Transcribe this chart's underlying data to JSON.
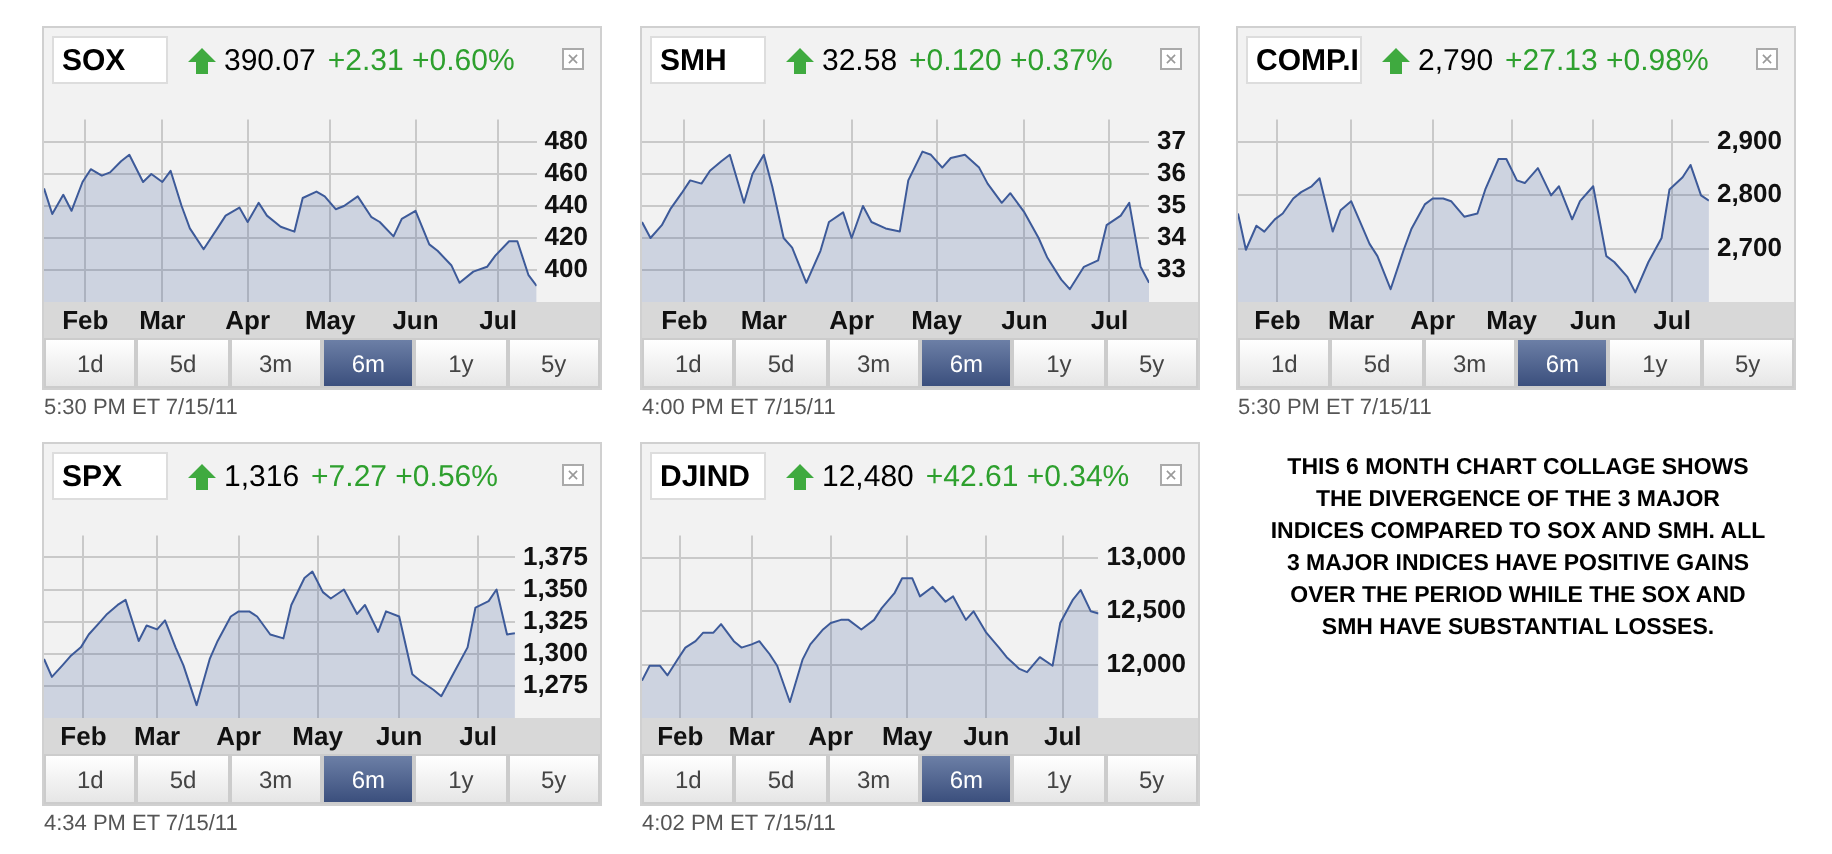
{
  "chart_data": [
    {
      "type": "area",
      "title": "SOX",
      "subtitle": "390.07",
      "annotations": [
        "+2.31 +0.60%",
        "1d",
        "5d",
        "3m",
        "6m",
        "1y",
        "5y",
        "5:30 PM ET 7/15/11"
      ],
      "grid": true,
      "color": "#3d5a99",
      "x": [
        "--01-17",
        "--01-20",
        "--01-24",
        "--01-27",
        "--01-31",
        "--02-03",
        "--02-07",
        "--02-10",
        "--02-14",
        "--02-17",
        "--02-22",
        "--02-25",
        "--03-01",
        "--03-04",
        "--03-08",
        "--03-11",
        "--03-16",
        "--03-21",
        "--03-24",
        "--03-29",
        "--04-01",
        "--04-05",
        "--04-08",
        "--04-13",
        "--04-18",
        "--04-21",
        "--04-26",
        "--04-29",
        "--05-03",
        "--05-06",
        "--05-11",
        "--05-16",
        "--05-19",
        "--05-24",
        "--05-27",
        "--06-01",
        "--06-06",
        "--06-09",
        "--06-14",
        "--06-17",
        "--06-22",
        "--06-27",
        "--06-30",
        "--07-05",
        "--07-08",
        "--07-12",
        "--07-15"
      ],
      "values": [
        451,
        435,
        447,
        437,
        455,
        463,
        459,
        461,
        468,
        472,
        455,
        460,
        455,
        462,
        440,
        426,
        413,
        426,
        434,
        439,
        430,
        442,
        434,
        427,
        424,
        445,
        449,
        446,
        438,
        440,
        446,
        433,
        430,
        421,
        432,
        437,
        416,
        412,
        403,
        392,
        399,
        402,
        409,
        418,
        418,
        397,
        390
      ],
      "xlim": [
        "--01-17",
        "--07-15"
      ],
      "xticks": [
        {
          "value": "--02-01",
          "label": "Feb"
        },
        {
          "value": "--03-01",
          "label": "Mar"
        },
        {
          "value": "--04-01",
          "label": "Apr"
        },
        {
          "value": "--05-01",
          "label": "May"
        },
        {
          "value": "--06-01",
          "label": "Jun"
        },
        {
          "value": "--07-01",
          "label": "Jul"
        }
      ],
      "ylim": [
        380,
        494
      ],
      "yticks": [
        400,
        420,
        440,
        460,
        480
      ]
    },
    {
      "type": "area",
      "title": "SMH",
      "subtitle": "32.58",
      "annotations": [
        "+0.120 +0.37%",
        "1d",
        "5d",
        "3m",
        "6m",
        "1y",
        "5y",
        "4:00 PM ET 7/15/11"
      ],
      "grid": true,
      "color": "#3d5a99",
      "x": [
        "--01-17",
        "--01-20",
        "--01-24",
        "--01-27",
        "--01-31",
        "--02-03",
        "--02-07",
        "--02-10",
        "--02-14",
        "--02-17",
        "--02-22",
        "--02-25",
        "--03-01",
        "--03-04",
        "--03-08",
        "--03-11",
        "--03-16",
        "--03-21",
        "--03-24",
        "--03-29",
        "--04-01",
        "--04-05",
        "--04-08",
        "--04-13",
        "--04-18",
        "--04-21",
        "--04-26",
        "--04-29",
        "--05-03",
        "--05-06",
        "--05-11",
        "--05-16",
        "--05-19",
        "--05-24",
        "--05-27",
        "--06-01",
        "--06-06",
        "--06-09",
        "--06-14",
        "--06-17",
        "--06-22",
        "--06-27",
        "--06-30",
        "--07-05",
        "--07-08",
        "--07-12",
        "--07-15"
      ],
      "values": [
        34.5,
        34.0,
        34.4,
        34.9,
        35.4,
        35.8,
        35.7,
        36.1,
        36.4,
        36.6,
        35.1,
        36.0,
        36.6,
        35.6,
        34.0,
        33.7,
        32.6,
        33.6,
        34.5,
        34.8,
        34.0,
        35.0,
        34.5,
        34.3,
        34.2,
        35.8,
        36.7,
        36.6,
        36.2,
        36.5,
        36.6,
        36.2,
        35.7,
        35.1,
        35.4,
        34.8,
        34.0,
        33.4,
        32.7,
        32.4,
        33.1,
        33.3,
        34.4,
        34.7,
        35.1,
        33.1,
        32.6
      ],
      "xlim": [
        "--01-17",
        "--07-15"
      ],
      "xticks": [
        {
          "value": "--02-01",
          "label": "Feb"
        },
        {
          "value": "--03-01",
          "label": "Mar"
        },
        {
          "value": "--04-01",
          "label": "Apr"
        },
        {
          "value": "--05-01",
          "label": "May"
        },
        {
          "value": "--06-01",
          "label": "Jun"
        },
        {
          "value": "--07-01",
          "label": "Jul"
        }
      ],
      "ylim": [
        32,
        37.7
      ],
      "yticks": [
        33,
        34,
        35,
        36,
        37
      ]
    },
    {
      "type": "area",
      "title": "COMP.II",
      "subtitle": "2,790",
      "annotations": [
        "+27.13 +0.98%",
        "1d",
        "5d",
        "3m",
        "6m",
        "1y",
        "5y",
        "5:30 PM ET 7/15/11"
      ],
      "grid": true,
      "color": "#3d5a99",
      "x": [
        "--01-17",
        "--01-20",
        "--01-24",
        "--01-27",
        "--01-31",
        "--02-03",
        "--02-07",
        "--02-10",
        "--02-14",
        "--02-17",
        "--02-22",
        "--02-25",
        "--03-01",
        "--03-04",
        "--03-08",
        "--03-11",
        "--03-16",
        "--03-21",
        "--03-24",
        "--03-29",
        "--04-01",
        "--04-05",
        "--04-08",
        "--04-13",
        "--04-18",
        "--04-21",
        "--04-26",
        "--04-29",
        "--05-03",
        "--05-06",
        "--05-11",
        "--05-16",
        "--05-19",
        "--05-24",
        "--05-27",
        "--06-01",
        "--06-06",
        "--06-09",
        "--06-14",
        "--06-17",
        "--06-22",
        "--06-27",
        "--06-30",
        "--07-05",
        "--07-08",
        "--07-12",
        "--07-15"
      ],
      "values": [
        2766,
        2698,
        2743,
        2732,
        2755,
        2766,
        2794,
        2806,
        2817,
        2832,
        2732,
        2772,
        2789,
        2755,
        2709,
        2686,
        2624,
        2698,
        2738,
        2783,
        2794,
        2794,
        2789,
        2760,
        2766,
        2811,
        2868,
        2868,
        2828,
        2823,
        2851,
        2800,
        2817,
        2755,
        2789,
        2817,
        2686,
        2675,
        2647,
        2618,
        2675,
        2720,
        2811,
        2834,
        2857,
        2800,
        2790
      ],
      "xlim": [
        "--01-17",
        "--07-15"
      ],
      "xticks": [
        {
          "value": "--02-01",
          "label": "Feb"
        },
        {
          "value": "--03-01",
          "label": "Mar"
        },
        {
          "value": "--04-01",
          "label": "Apr"
        },
        {
          "value": "--05-01",
          "label": "May"
        },
        {
          "value": "--06-01",
          "label": "Jun"
        },
        {
          "value": "--07-01",
          "label": "Jul"
        }
      ],
      "ylim": [
        2600,
        2942
      ],
      "yticks": [
        {
          "value": 2700,
          "label": "2,700"
        },
        {
          "value": 2800,
          "label": "2,800"
        },
        {
          "value": 2900,
          "label": "2,900"
        }
      ]
    },
    {
      "type": "area",
      "title": "SPX",
      "subtitle": "1,316",
      "annotations": [
        "+7.27 +0.56%",
        "1d",
        "5d",
        "3m",
        "6m",
        "1y",
        "5y",
        "4:34 PM ET 7/15/11"
      ],
      "grid": true,
      "color": "#3d5a99",
      "x": [
        "--01-17",
        "--01-20",
        "--01-24",
        "--01-27",
        "--01-31",
        "--02-03",
        "--02-07",
        "--02-10",
        "--02-14",
        "--02-17",
        "--02-22",
        "--02-25",
        "--03-01",
        "--03-04",
        "--03-08",
        "--03-11",
        "--03-16",
        "--03-21",
        "--03-24",
        "--03-29",
        "--04-01",
        "--04-05",
        "--04-08",
        "--04-13",
        "--04-18",
        "--04-21",
        "--04-26",
        "--04-29",
        "--05-03",
        "--05-06",
        "--05-11",
        "--05-16",
        "--05-19",
        "--05-24",
        "--05-27",
        "--06-01",
        "--06-06",
        "--06-09",
        "--06-14",
        "--06-17",
        "--06-22",
        "--06-27",
        "--06-30",
        "--07-05",
        "--07-08",
        "--07-12",
        "--07-15"
      ],
      "values": [
        1296,
        1282,
        1291,
        1298,
        1305,
        1315,
        1324,
        1331,
        1338,
        1342,
        1310,
        1322,
        1319,
        1326,
        1305,
        1291,
        1260,
        1296,
        1310,
        1329,
        1333,
        1333,
        1329,
        1315,
        1312,
        1338,
        1359,
        1364,
        1348,
        1343,
        1350,
        1331,
        1338,
        1317,
        1333,
        1329,
        1284,
        1279,
        1272,
        1267,
        1286,
        1305,
        1336,
        1341,
        1350,
        1315,
        1316
      ],
      "xlim": [
        "--01-17",
        "--07-15"
      ],
      "xticks": [
        {
          "value": "--02-01",
          "label": "Feb"
        },
        {
          "value": "--03-01",
          "label": "Mar"
        },
        {
          "value": "--04-01",
          "label": "Apr"
        },
        {
          "value": "--05-01",
          "label": "May"
        },
        {
          "value": "--06-01",
          "label": "Jun"
        },
        {
          "value": "--07-01",
          "label": "Jul"
        }
      ],
      "ylim": [
        1250,
        1392
      ],
      "yticks": [
        {
          "value": 1275,
          "label": "1,275"
        },
        {
          "value": 1300,
          "label": "1,300"
        },
        {
          "value": 1325,
          "label": "1,325"
        },
        {
          "value": 1350,
          "label": "1,350"
        },
        {
          "value": 1375,
          "label": "1,375"
        }
      ]
    },
    {
      "type": "area",
      "title": "DJIND",
      "subtitle": "12,480",
      "annotations": [
        "+42.61 +0.34%",
        "1d",
        "5d",
        "3m",
        "6m",
        "1y",
        "5y",
        "4:02 PM ET 7/15/11"
      ],
      "grid": true,
      "color": "#3d5a99",
      "x": [
        "--01-17",
        "--01-20",
        "--01-24",
        "--01-27",
        "--01-31",
        "--02-03",
        "--02-07",
        "--02-10",
        "--02-14",
        "--02-17",
        "--02-22",
        "--02-25",
        "--03-01",
        "--03-04",
        "--03-08",
        "--03-11",
        "--03-16",
        "--03-21",
        "--03-24",
        "--03-29",
        "--04-01",
        "--04-05",
        "--04-08",
        "--04-13",
        "--04-18",
        "--04-21",
        "--04-26",
        "--04-29",
        "--05-03",
        "--05-06",
        "--05-11",
        "--05-16",
        "--05-19",
        "--05-24",
        "--05-27",
        "--06-01",
        "--06-06",
        "--06-09",
        "--06-14",
        "--06-17",
        "--06-22",
        "--06-27",
        "--06-30",
        "--07-05",
        "--07-08",
        "--07-12",
        "--07-15"
      ],
      "values": [
        11850,
        11990,
        11990,
        11900,
        12050,
        12160,
        12220,
        12300,
        12300,
        12380,
        12220,
        12160,
        12190,
        12220,
        12100,
        11990,
        11650,
        12050,
        12190,
        12330,
        12390,
        12420,
        12420,
        12330,
        12420,
        12530,
        12670,
        12810,
        12810,
        12640,
        12730,
        12590,
        12640,
        12420,
        12500,
        12300,
        12160,
        12070,
        11960,
        11930,
        12070,
        11990,
        12390,
        12610,
        12700,
        12500,
        12480
      ],
      "xlim": [
        "--01-17",
        "--07-15"
      ],
      "xticks": [
        {
          "value": "--02-01",
          "label": "Feb"
        },
        {
          "value": "--03-01",
          "label": "Mar"
        },
        {
          "value": "--04-01",
          "label": "Apr"
        },
        {
          "value": "--05-01",
          "label": "May"
        },
        {
          "value": "--06-01",
          "label": "Jun"
        },
        {
          "value": "--07-01",
          "label": "Jul"
        }
      ],
      "ylim": [
        11500,
        13210
      ],
      "yticks": [
        {
          "value": 12000,
          "label": "12,000"
        },
        {
          "value": 12500,
          "label": "12,500"
        },
        {
          "value": 13000,
          "label": "13,000"
        }
      ]
    },
    {
      "type": "other",
      "title": "THIS 6 MONTH CHART COLLAGE SHOWS THE DIVERGENCE OF THE 3 MAJOR INDICES COMPARED TO SOX AND SMH.  ALL 3 MAJOR INDICES HAVE POSITIVE GAINS OVER THE PERIOD WHILE THE SOX AND SMH HAVE SUBSTANTIAL LOSSES."
    }
  ]
}
